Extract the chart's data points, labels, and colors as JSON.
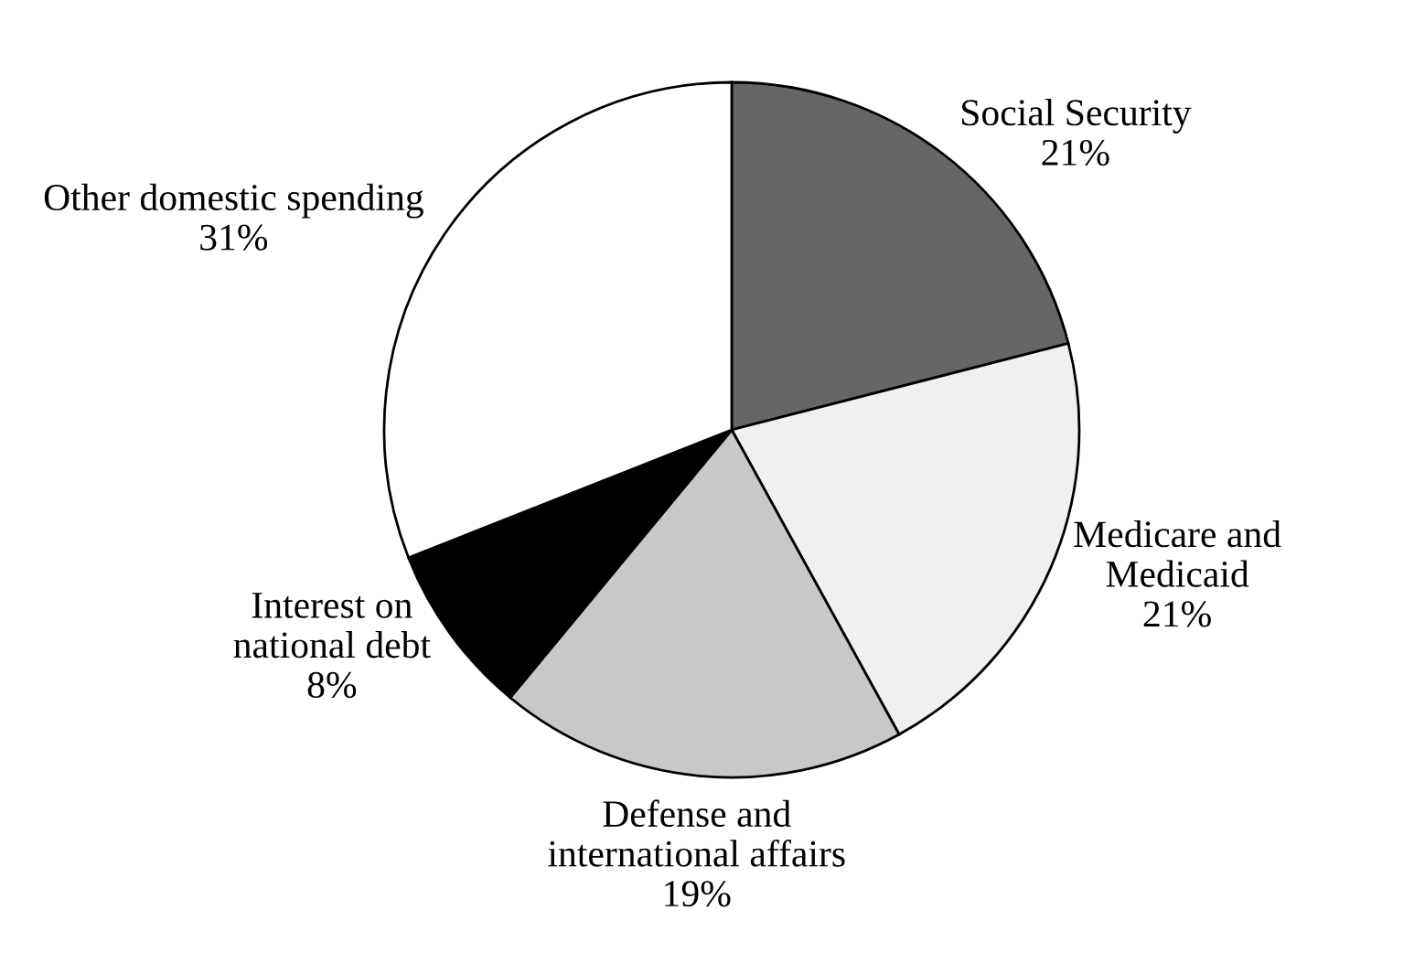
{
  "chart_data": {
    "type": "pie",
    "categories": [
      "Social Security",
      "Medicare and\nMedicaid",
      "Defense and\ninternational affairs",
      "Interest on\nnational debt",
      "Other domestic spending"
    ],
    "values": [
      21,
      21,
      19,
      8,
      31
    ],
    "value_labels": [
      "21%",
      "21%",
      "19%",
      "8%",
      "31%"
    ],
    "colors": [
      "#666666",
      "#f0f0f0",
      "#c8c8c8",
      "#000000",
      "#ffffff"
    ],
    "legend": false
  }
}
